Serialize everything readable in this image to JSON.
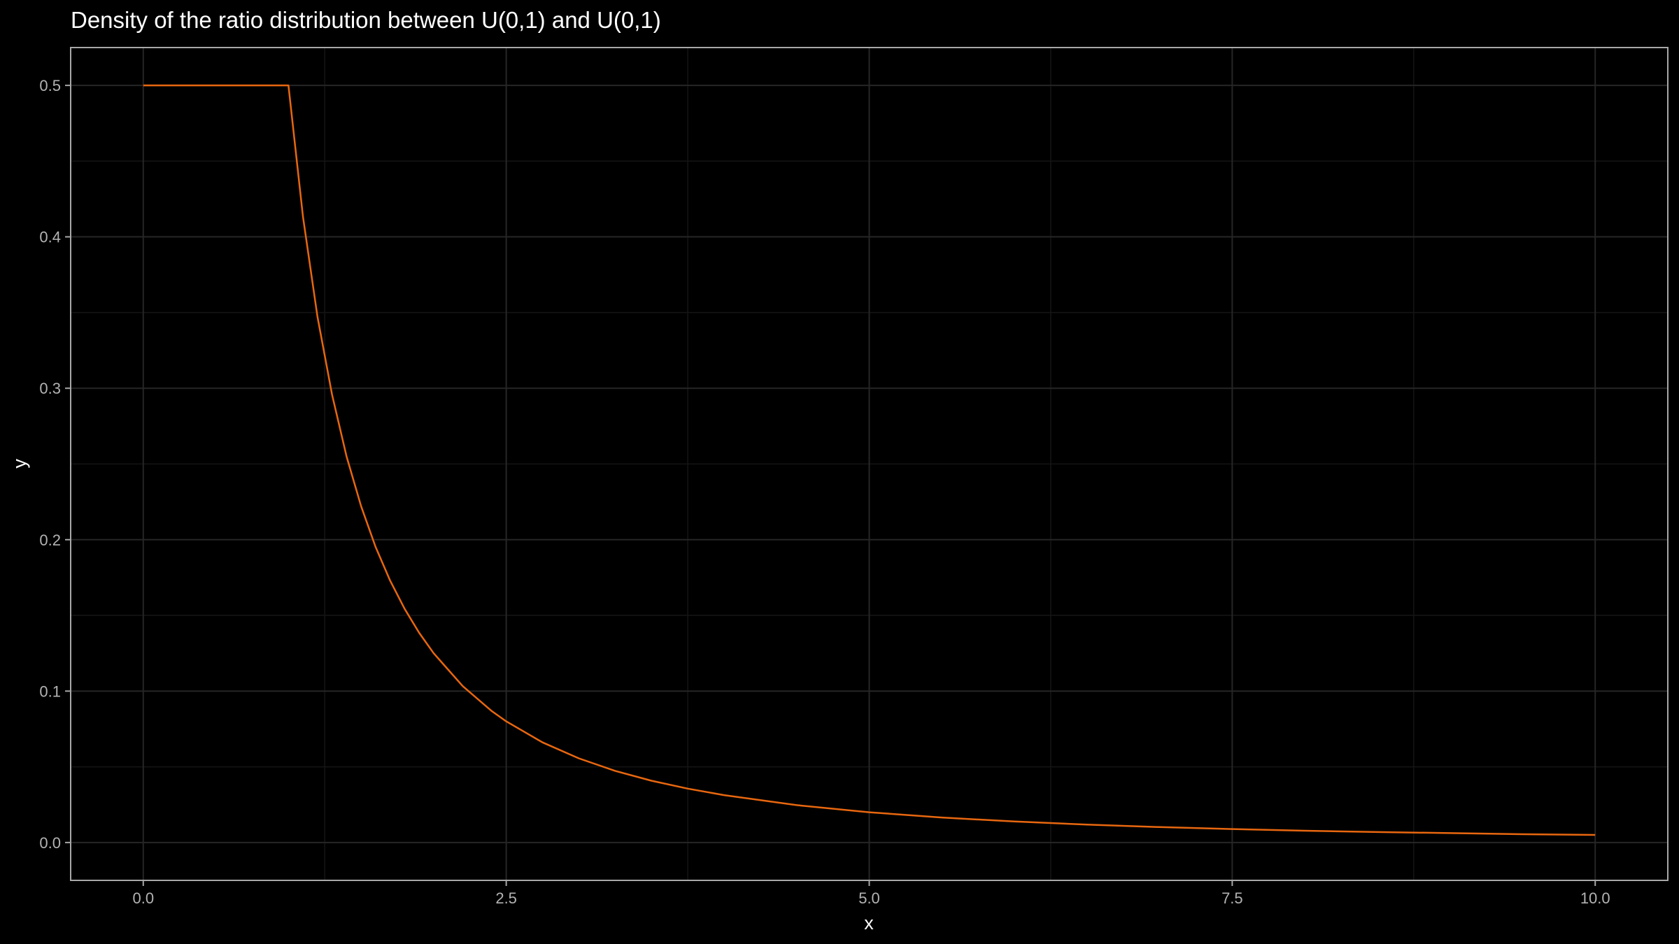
{
  "chart_data": {
    "type": "line",
    "title": "Density of the ratio distribution between U(0,1) and U(0,1)",
    "xlabel": "x",
    "ylabel": "y",
    "xlim": [
      -0.5,
      10.5
    ],
    "ylim": [
      -0.025,
      0.525
    ],
    "x_ticks": [
      0,
      2.5,
      5,
      7.5,
      10
    ],
    "x_tick_labels": [
      "0.0",
      "2.5",
      "5.0",
      "7.5",
      "10.0"
    ],
    "y_ticks": [
      0,
      0.1,
      0.2,
      0.3,
      0.4,
      0.5
    ],
    "y_tick_labels": [
      "0.0",
      "0.1",
      "0.2",
      "0.3",
      "0.4",
      "0.5"
    ],
    "grid": true,
    "series": [
      {
        "color": "#e8670f",
        "x": [
          0,
          0.25,
          0.5,
          0.75,
          1.0,
          1.1,
          1.2,
          1.3,
          1.4,
          1.5,
          1.6,
          1.7,
          1.8,
          1.9,
          2.0,
          2.2,
          2.4,
          2.5,
          2.75,
          3.0,
          3.25,
          3.5,
          3.75,
          4.0,
          4.5,
          5.0,
          5.5,
          6.0,
          6.5,
          7.0,
          7.5,
          8.0,
          8.5,
          9.0,
          9.5,
          10.0
        ],
        "y": [
          0.5,
          0.5,
          0.5,
          0.5,
          0.5,
          0.4132,
          0.3472,
          0.2959,
          0.2551,
          0.2222,
          0.1953,
          0.173,
          0.1543,
          0.1385,
          0.125,
          0.1033,
          0.0868,
          0.08,
          0.0661,
          0.0556,
          0.0473,
          0.0408,
          0.0356,
          0.0313,
          0.0247,
          0.02,
          0.0165,
          0.0139,
          0.0118,
          0.0102,
          0.0089,
          0.0078,
          0.0069,
          0.0062,
          0.0055,
          0.005
        ]
      }
    ]
  },
  "colors": {
    "background": "#000000",
    "panel_border": "#a8a8a8",
    "grid_major": "#262626",
    "grid_minor": "#151515",
    "line": "#e8670f"
  }
}
